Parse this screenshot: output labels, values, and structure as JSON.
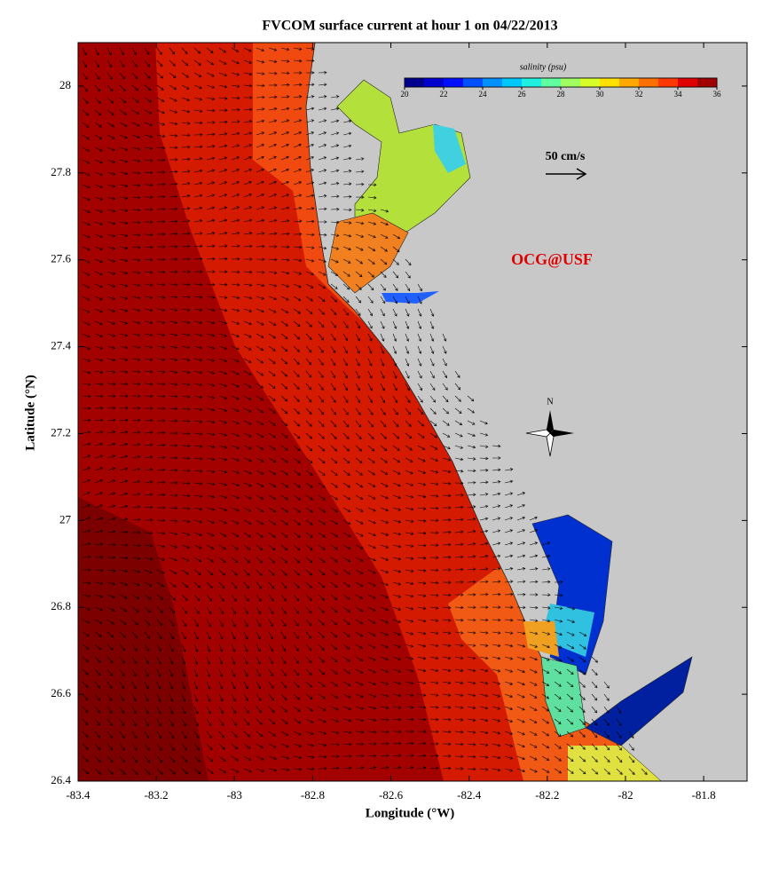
{
  "chart_data": {
    "type": "map",
    "title": "FVCOM surface current at hour 1 on 04/22/2013",
    "xlabel": "Longitude (°W)",
    "ylabel": "Latitude (°N)",
    "xlim": [
      -83.4,
      -81.689
    ],
    "ylim": [
      26.4,
      28.1
    ],
    "xticks": [
      -83.4,
      -83.2,
      -83,
      -82.8,
      -82.6,
      -82.4,
      -82.2,
      -82,
      -81.8
    ],
    "yticks": [
      26.4,
      26.6,
      26.8,
      27,
      27.2,
      27.4,
      27.6,
      27.8,
      28
    ],
    "colorbar": {
      "label": "salinity (psu)",
      "lim": [
        20,
        36
      ],
      "ticks": [
        20,
        22,
        24,
        26,
        28,
        30,
        32,
        34,
        36
      ],
      "colors": [
        "#00008f",
        "#0000cf",
        "#0010ff",
        "#0050ff",
        "#0090ff",
        "#00c8ff",
        "#20f0df",
        "#60ffa0",
        "#a0ff60",
        "#d8ff28",
        "#ffe000",
        "#ffa800",
        "#ff7000",
        "#ff3800",
        "#e00000",
        "#a00000"
      ]
    },
    "scale_label": "50 cm/s",
    "watermark": "OCG@USF",
    "compass": "N"
  }
}
